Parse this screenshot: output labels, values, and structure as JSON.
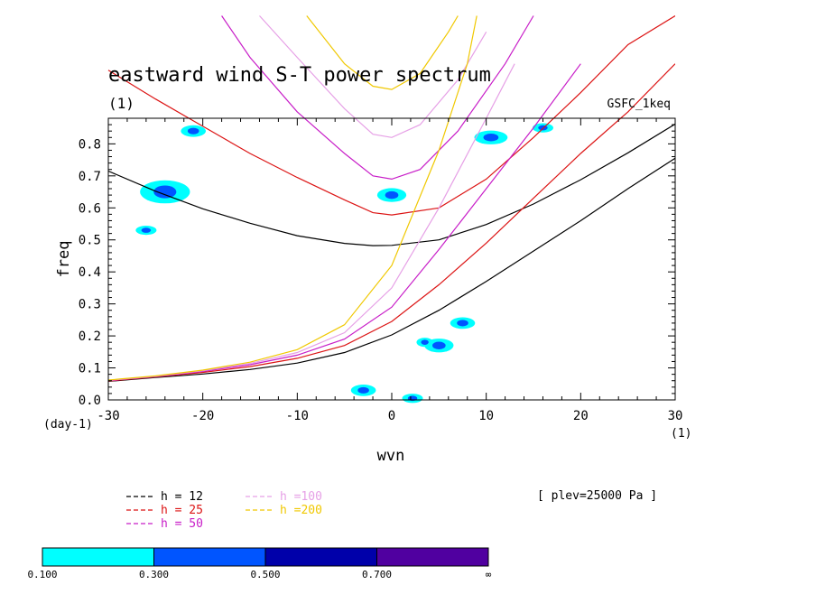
{
  "chart_data": {
    "type": "contour",
    "title": "eastward wind S-T power spectrum",
    "units_label": "(1)",
    "source_label": "GSFC_1keq",
    "xlabel": "wvn",
    "ylabel": "freq",
    "x_unit_label": "(1)",
    "y_unit_label": "(day-1)",
    "xlim": [
      -30,
      30
    ],
    "ylim": [
      0,
      0.88
    ],
    "xticks": [
      -30,
      -20,
      -10,
      0,
      10,
      20,
      30
    ],
    "yticks": [
      0.0,
      0.1,
      0.2,
      0.3,
      0.4,
      0.5,
      0.6,
      0.7,
      0.8
    ],
    "ytick_labels": [
      "0.0",
      "0.1",
      "0.2",
      "0.3",
      "0.4",
      "0.5",
      "0.6",
      "0.7",
      "0.8"
    ],
    "annotation": "[ plev=25000 Pa ]",
    "dispersion_curves": [
      {
        "name": "h = 12",
        "color": "#000000",
        "kelvin_pts": [
          [
            -30,
            0.058
          ],
          [
            -25,
            0.07
          ],
          [
            -20,
            0.081
          ],
          [
            -15,
            0.095
          ],
          [
            -10,
            0.115
          ],
          [
            -5,
            0.148
          ],
          [
            0,
            0.203
          ],
          [
            5,
            0.28
          ],
          [
            10,
            0.37
          ],
          [
            15,
            0.465
          ],
          [
            20,
            0.56
          ],
          [
            25,
            0.66
          ],
          [
            30,
            0.755
          ]
        ],
        "ig_pts": [
          [
            -30,
            0.715
          ],
          [
            -25,
            0.652
          ],
          [
            -20,
            0.597
          ],
          [
            -15,
            0.552
          ],
          [
            -10,
            0.513
          ],
          [
            -5,
            0.489
          ],
          [
            -2,
            0.482
          ],
          [
            0,
            0.483
          ],
          [
            5,
            0.5
          ],
          [
            10,
            0.548
          ],
          [
            15,
            0.612
          ],
          [
            20,
            0.688
          ],
          [
            25,
            0.772
          ],
          [
            30,
            0.862
          ]
        ]
      },
      {
        "name": "h = 25",
        "color": "#dc1414",
        "kelvin_pts": [
          [
            -30,
            0.059
          ],
          [
            -25,
            0.072
          ],
          [
            -20,
            0.086
          ],
          [
            -15,
            0.104
          ],
          [
            -10,
            0.13
          ],
          [
            -5,
            0.17
          ],
          [
            0,
            0.245
          ],
          [
            5,
            0.36
          ],
          [
            10,
            0.49
          ],
          [
            15,
            0.63
          ],
          [
            20,
            0.77
          ],
          [
            25,
            0.9
          ],
          [
            30,
            1.05
          ]
        ],
        "ig_pts": [
          [
            -30,
            1.03
          ],
          [
            -25,
            0.94
          ],
          [
            -20,
            0.855
          ],
          [
            -15,
            0.77
          ],
          [
            -10,
            0.695
          ],
          [
            -5,
            0.625
          ],
          [
            -2,
            0.585
          ],
          [
            0,
            0.578
          ],
          [
            5,
            0.6
          ],
          [
            10,
            0.69
          ],
          [
            15,
            0.82
          ],
          [
            20,
            0.96
          ],
          [
            25,
            1.11
          ],
          [
            30,
            1.2
          ]
        ]
      },
      {
        "name": "h = 50",
        "color": "#c81ec8",
        "kelvin_pts": [
          [
            -30,
            0.06
          ],
          [
            -25,
            0.073
          ],
          [
            -20,
            0.089
          ],
          [
            -15,
            0.11
          ],
          [
            -10,
            0.14
          ],
          [
            -5,
            0.19
          ],
          [
            0,
            0.29
          ],
          [
            5,
            0.47
          ],
          [
            10,
            0.66
          ],
          [
            15,
            0.85
          ],
          [
            20,
            1.05
          ]
        ],
        "ig_pts": [
          [
            -18,
            1.2
          ],
          [
            -15,
            1.07
          ],
          [
            -10,
            0.9
          ],
          [
            -5,
            0.77
          ],
          [
            -2,
            0.7
          ],
          [
            0,
            0.69
          ],
          [
            3,
            0.72
          ],
          [
            7,
            0.84
          ],
          [
            12,
            1.05
          ],
          [
            15,
            1.2
          ]
        ]
      },
      {
        "name": "h =100",
        "color": "#e6a0e6",
        "kelvin_pts": [
          [
            -30,
            0.061
          ],
          [
            -25,
            0.074
          ],
          [
            -20,
            0.091
          ],
          [
            -15,
            0.114
          ],
          [
            -10,
            0.148
          ],
          [
            -5,
            0.21
          ],
          [
            0,
            0.35
          ],
          [
            5,
            0.6
          ],
          [
            10,
            0.88
          ],
          [
            13,
            1.05
          ]
        ],
        "ig_pts": [
          [
            -14,
            1.2
          ],
          [
            -10,
            1.07
          ],
          [
            -5,
            0.91
          ],
          [
            -2,
            0.83
          ],
          [
            0,
            0.82
          ],
          [
            3,
            0.86
          ],
          [
            7,
            1.0
          ],
          [
            10,
            1.15
          ]
        ]
      },
      {
        "name": "h =200",
        "color": "#f0c800",
        "kelvin_pts": [
          [
            -30,
            0.062
          ],
          [
            -25,
            0.075
          ],
          [
            -20,
            0.093
          ],
          [
            -15,
            0.118
          ],
          [
            -10,
            0.157
          ],
          [
            -5,
            0.235
          ],
          [
            0,
            0.42
          ],
          [
            5,
            0.78
          ],
          [
            8,
            1.05
          ],
          [
            9,
            1.2
          ]
        ],
        "ig_pts": [
          [
            -9,
            1.2
          ],
          [
            -5,
            1.05
          ],
          [
            -2,
            0.98
          ],
          [
            0,
            0.97
          ],
          [
            3,
            1.02
          ],
          [
            6,
            1.15
          ],
          [
            7,
            1.2
          ]
        ]
      }
    ],
    "contour_levels": [
      0.1,
      0.3,
      0.5,
      0.7
    ],
    "colorbar": {
      "tick_labels": [
        "0.100",
        "0.300",
        "0.500",
        "0.700",
        "∞"
      ],
      "colors": [
        "#00ffff",
        "#0055ff",
        "#0000aa",
        "#5000a0"
      ]
    },
    "contour_patches": [
      {
        "x": -24,
        "y": 0.65,
        "rx": 1.2,
        "ry": 0.02,
        "level": 1
      },
      {
        "x": -21,
        "y": 0.84,
        "rx": 0.6,
        "ry": 0.01,
        "level": 1
      },
      {
        "x": 0,
        "y": 0.64,
        "rx": 0.7,
        "ry": 0.012,
        "level": 1
      },
      {
        "x": 10.5,
        "y": 0.82,
        "rx": 0.8,
        "ry": 0.012,
        "level": 1
      },
      {
        "x": 7.5,
        "y": 0.24,
        "rx": 0.6,
        "ry": 0.01,
        "level": 1
      },
      {
        "x": 5,
        "y": 0.17,
        "rx": 0.7,
        "ry": 0.012,
        "level": 1
      },
      {
        "x": -3,
        "y": 0.03,
        "rx": 0.6,
        "ry": 0.01,
        "level": 1
      },
      {
        "x": 2.2,
        "y": 0.005,
        "rx": 0.5,
        "ry": 0.008,
        "level": 1
      },
      {
        "x": 3.5,
        "y": 0.18,
        "rx": 0.4,
        "ry": 0.008,
        "level": 1
      },
      {
        "x": -26,
        "y": 0.53,
        "rx": 0.5,
        "ry": 0.008,
        "level": 1
      },
      {
        "x": 16,
        "y": 0.85,
        "rx": 0.5,
        "ry": 0.008,
        "level": 1
      }
    ]
  }
}
